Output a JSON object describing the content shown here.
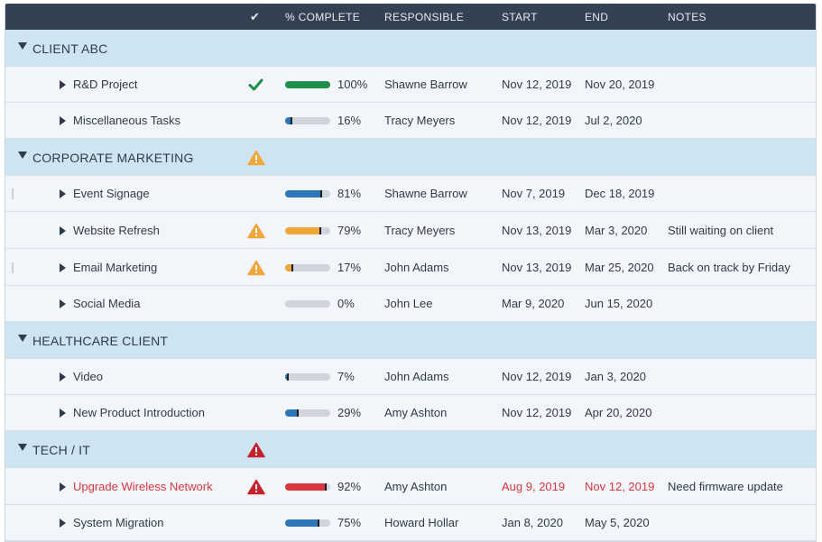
{
  "columns": {
    "check": "✔",
    "complete": "% COMPLETE",
    "responsible": "RESPONSIBLE",
    "start": "START",
    "end": "END",
    "notes": "NOTES"
  },
  "colors": {
    "blue": "#2d76b8",
    "green": "#1e8f48",
    "orange": "#f0a63a",
    "red": "#d9363e"
  },
  "groups": [
    {
      "name": "CLIENT ABC",
      "icon": "",
      "tasks": [
        {
          "name": "R&D Project",
          "icon": "checkmark-icon",
          "progress": 100,
          "progress_label": "100%",
          "color": "green",
          "responsible": "Shawne Barrow",
          "start": "Nov 12, 2019",
          "end": "Nov 20, 2019",
          "notes": ""
        },
        {
          "name": "Miscellaneous Tasks",
          "icon": "",
          "progress": 16,
          "progress_label": "16%",
          "color": "blue",
          "responsible": "Tracy Meyers",
          "start": "Nov 12, 2019",
          "end": "Jul 2, 2020",
          "notes": ""
        }
      ]
    },
    {
      "name": "CORPORATE MARKETING",
      "icon": "warning-icon",
      "tasks": [
        {
          "name": "Event Signage",
          "icon": "",
          "progress": 81,
          "progress_label": "81%",
          "color": "blue",
          "responsible": "Shawne Barrow",
          "start": "Nov 7, 2019",
          "end": "Dec 18, 2019",
          "notes": ""
        },
        {
          "name": "Website Refresh",
          "icon": "warning-icon",
          "progress": 79,
          "progress_label": "79%",
          "color": "orange",
          "responsible": "Tracy Meyers",
          "start": "Nov 13, 2019",
          "end": "Mar 3, 2020",
          "notes": "Still waiting on client"
        },
        {
          "name": "Email Marketing",
          "icon": "warning-icon",
          "progress": 17,
          "progress_label": "17%",
          "color": "orange",
          "responsible": "John Adams",
          "start": "Nov 13, 2019",
          "end": "Mar 25, 2020",
          "notes": "Back on track by Friday"
        },
        {
          "name": "Social Media",
          "icon": "",
          "progress": 0,
          "progress_label": "0%",
          "color": "blue",
          "responsible": "John Lee",
          "start": "Mar 9, 2020",
          "end": "Jun 15, 2020",
          "notes": ""
        }
      ]
    },
    {
      "name": "HEALTHCARE CLIENT",
      "icon": "",
      "tasks": [
        {
          "name": "Video",
          "icon": "",
          "progress": 7,
          "progress_label": "7%",
          "color": "blue",
          "responsible": "John Adams",
          "start": "Nov 12, 2019",
          "end": "Jan 3, 2020",
          "notes": ""
        },
        {
          "name": "New Product Introduction",
          "icon": "",
          "progress": 29,
          "progress_label": "29%",
          "color": "blue",
          "responsible": "Amy Ashton",
          "start": "Nov 12, 2019",
          "end": "Apr 20, 2020",
          "notes": ""
        }
      ]
    },
    {
      "name": "TECH / IT",
      "icon": "alert-icon",
      "tasks": [
        {
          "name": "Upgrade Wireless Network",
          "icon": "alert-icon",
          "progress": 92,
          "progress_label": "92%",
          "color": "red",
          "responsible": "Amy Ashton",
          "start": "Aug 9, 2019",
          "end": "Nov 12, 2019",
          "notes": "Need firmware update",
          "overdue": true
        },
        {
          "name": "System Migration",
          "icon": "",
          "progress": 75,
          "progress_label": "75%",
          "color": "blue",
          "responsible": "Howard Hollar",
          "start": "Jan 8, 2020",
          "end": "May 5, 2020",
          "notes": ""
        }
      ]
    }
  ]
}
